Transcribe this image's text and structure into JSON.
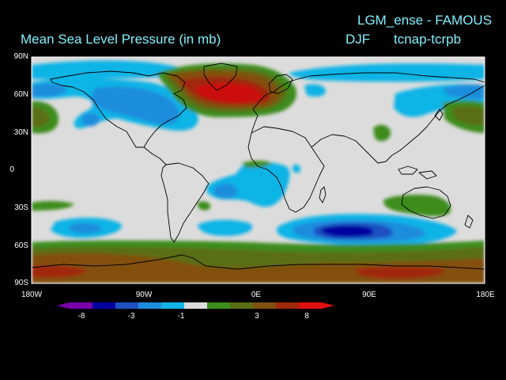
{
  "titles": {
    "model": "LGM_ense - FAMOUS",
    "variable": "Mean Sea Level Pressure (in mb)",
    "season": "DJF",
    "difference": "tcnap-tcrpb"
  },
  "map": {
    "projection": "lat-lon",
    "lat_labels": [
      "90N",
      "60N",
      "30N",
      "0",
      "30S",
      "60S",
      "90S"
    ],
    "lon_labels": [
      "180W",
      "90W",
      "0E",
      "90E",
      "180E"
    ]
  },
  "colorbar": {
    "tick_labels": [
      "-8",
      "-3",
      "-1",
      "3",
      "8"
    ],
    "colors": [
      "#7700aa",
      "#0000a0",
      "#1e50c0",
      "#1e8cdc",
      "#10b4e6",
      "#dcdcdc",
      "#3c8c1e",
      "#5a6e14",
      "#825010",
      "#a02808",
      "#e01010"
    ]
  },
  "colors": {
    "background": "#000000",
    "title": "#7ff0ff",
    "neutral": "#dcdcdc",
    "blue_light": "#10b4e6",
    "blue_mid": "#1e8cdc",
    "blue_dark": "#0000a0",
    "green": "#3c8c1e",
    "olive": "#5a6e14",
    "brown": "#825010",
    "red_brown": "#a02808",
    "red": "#cc1010"
  }
}
